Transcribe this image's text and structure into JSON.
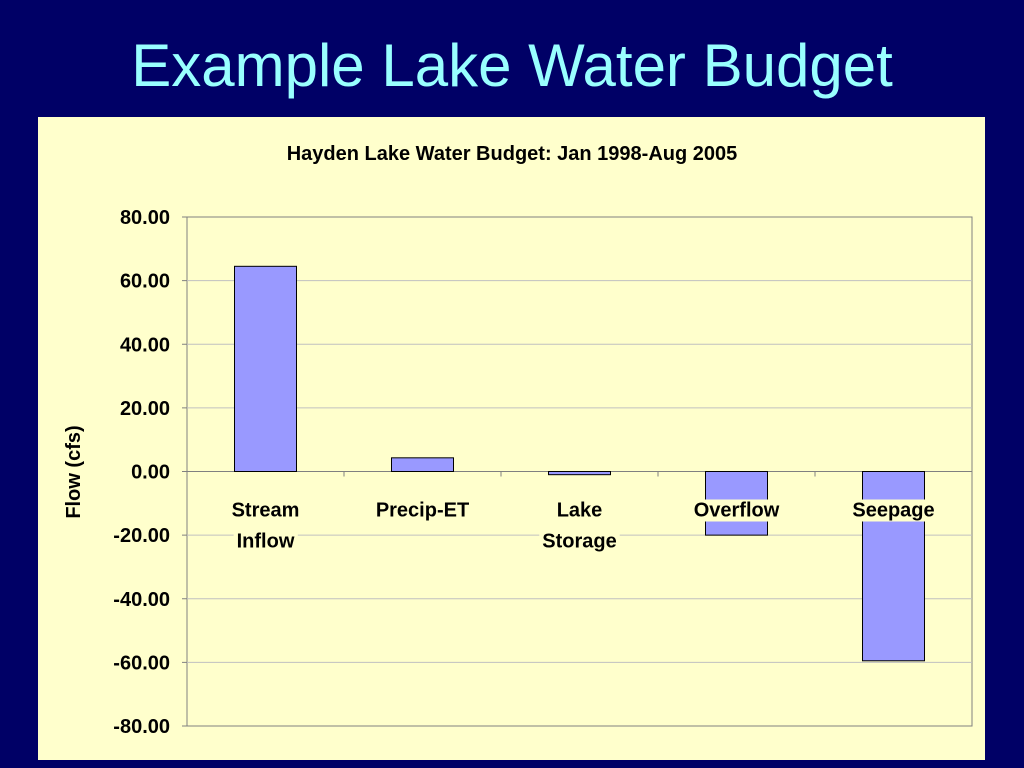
{
  "slide": {
    "title": "Example Lake Water Budget"
  },
  "colors": {
    "slide_background": "#000066",
    "title_text": "#99FFFF",
    "chart_background": "#FFFFCC",
    "bar_fill": "#9999FF",
    "bar_stroke": "#000000",
    "gridline": "#C0C0C0",
    "plot_border": "#808080"
  },
  "chart_data": {
    "type": "bar",
    "title": "Hayden Lake Water Budget: Jan 1998-Aug 2005",
    "xlabel": "",
    "ylabel": "Flow (cfs)",
    "categories": [
      [
        "Stream",
        "Inflow"
      ],
      [
        "Precip-ET"
      ],
      [
        "Lake",
        "Storage"
      ],
      [
        "Overflow"
      ],
      [
        "Seepage"
      ]
    ],
    "values": [
      64.5,
      4.3,
      -1.0,
      -20.0,
      -59.5
    ],
    "ylim": [
      -80,
      80
    ],
    "yticks": [
      80,
      60,
      40,
      20,
      0,
      -20,
      -40,
      -60,
      -80
    ],
    "ytick_labels": [
      "80.00",
      "60.00",
      "40.00",
      "20.00",
      "0.00",
      "-20.00",
      "-40.00",
      "-60.00",
      "-80.00"
    ],
    "grid": true,
    "legend": "none"
  }
}
